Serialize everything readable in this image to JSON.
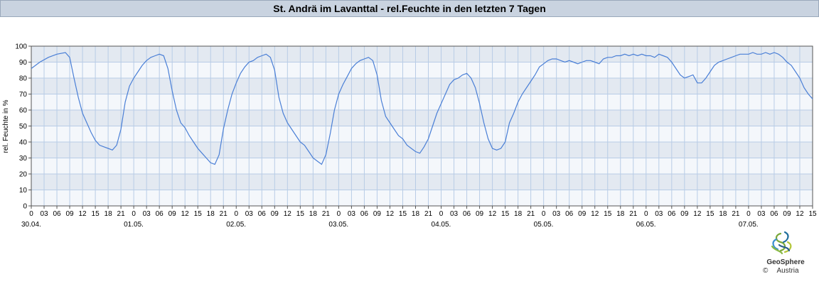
{
  "chart_data": {
    "type": "line",
    "title": "St. Andrä im Lavanttal - rel.Feuchte in den letzten 7 Tagen",
    "ylabel": "rel. Feuchte in %",
    "xlabel": "",
    "ylim": [
      0,
      100
    ],
    "yticks": [
      0,
      10,
      20,
      30,
      40,
      50,
      60,
      70,
      80,
      90,
      100
    ],
    "xlim_hours": [
      0,
      183
    ],
    "x_tick_labels": [
      "0",
      "03",
      "06",
      "09",
      "12",
      "15",
      "18",
      "21"
    ],
    "day_labels": [
      "30.04.",
      "01.05.",
      "02.05.",
      "03.05.",
      "04.05.",
      "05.05.",
      "06.05.",
      "07.05."
    ],
    "grid": true,
    "line_color": "#4a7fd6",
    "series": [
      {
        "x_hours": [
          0,
          2,
          4,
          6,
          8,
          9,
          10,
          11,
          12,
          13,
          14,
          15,
          16,
          17,
          18,
          19,
          20,
          21,
          22,
          23,
          24,
          25,
          26,
          27,
          28,
          29,
          30,
          31,
          32,
          33,
          34,
          35,
          36,
          37,
          38,
          39,
          40,
          41,
          42,
          43,
          44,
          45,
          46,
          47,
          48,
          49,
          50,
          51,
          52,
          53,
          54,
          55,
          56,
          57,
          58,
          59,
          60,
          61,
          62,
          63,
          64,
          65,
          66,
          67,
          68,
          69,
          70,
          71,
          72,
          73,
          74,
          75,
          76,
          77,
          78,
          79,
          80,
          81,
          82,
          83,
          84,
          85,
          86,
          87,
          88,
          89,
          90,
          91,
          92,
          93,
          94,
          95,
          96,
          97,
          98,
          99,
          100,
          101,
          102,
          103,
          104,
          105,
          106,
          107,
          108,
          109,
          110,
          111,
          112,
          113,
          114,
          115,
          116,
          117,
          118,
          119,
          120,
          121,
          122,
          123,
          124,
          125,
          126,
          127,
          128,
          129,
          130,
          131,
          132,
          133,
          134,
          135,
          136,
          137,
          138,
          139,
          140,
          141,
          142,
          143,
          144,
          145,
          146,
          147,
          148,
          149,
          150,
          151,
          152,
          153,
          154,
          155,
          156,
          157,
          158,
          159,
          160,
          161,
          162,
          163,
          164,
          165,
          166,
          167,
          168,
          169,
          170,
          171,
          172,
          173,
          174,
          175,
          176,
          177,
          178,
          179,
          180,
          181,
          182,
          183
        ],
        "values": [
          86,
          90,
          93,
          95,
          96,
          93,
          80,
          68,
          58,
          52,
          46,
          41,
          38,
          37,
          36,
          35,
          38,
          48,
          65,
          75,
          80,
          84,
          88,
          91,
          93,
          94,
          95,
          94,
          86,
          72,
          60,
          52,
          49,
          44,
          40,
          36,
          33,
          30,
          27,
          26,
          32,
          48,
          60,
          70,
          77,
          83,
          87,
          90,
          91,
          93,
          94,
          95,
          93,
          85,
          68,
          58,
          52,
          48,
          44,
          40,
          38,
          34,
          30,
          28,
          26,
          32,
          45,
          60,
          70,
          76,
          81,
          86,
          89,
          91,
          92,
          93,
          91,
          82,
          66,
          56,
          52,
          48,
          44,
          42,
          38,
          36,
          34,
          33,
          37,
          42,
          50,
          58,
          64,
          70,
          76,
          79,
          80,
          82,
          83,
          80,
          74,
          64,
          52,
          42,
          36,
          35,
          36,
          40,
          52,
          58,
          65,
          70,
          74,
          78,
          82,
          87,
          89,
          91,
          92,
          92,
          91,
          90,
          91,
          90,
          89,
          90,
          91,
          91,
          90,
          89,
          92,
          93,
          93,
          94,
          94,
          95,
          94,
          95,
          94,
          95,
          94,
          94,
          93,
          95,
          94,
          93,
          90,
          86,
          82,
          80,
          81,
          82,
          77,
          77,
          80,
          84,
          88,
          90,
          91,
          92,
          93,
          94,
          95,
          95,
          95,
          96,
          95,
          95,
          96,
          95,
          96,
          95,
          93,
          90,
          88,
          84,
          80,
          74,
          70,
          67
        ]
      }
    ]
  },
  "footer": {
    "logo_name": "GeoSphere",
    "logo_sub": "Austria",
    "copyright": "©"
  }
}
